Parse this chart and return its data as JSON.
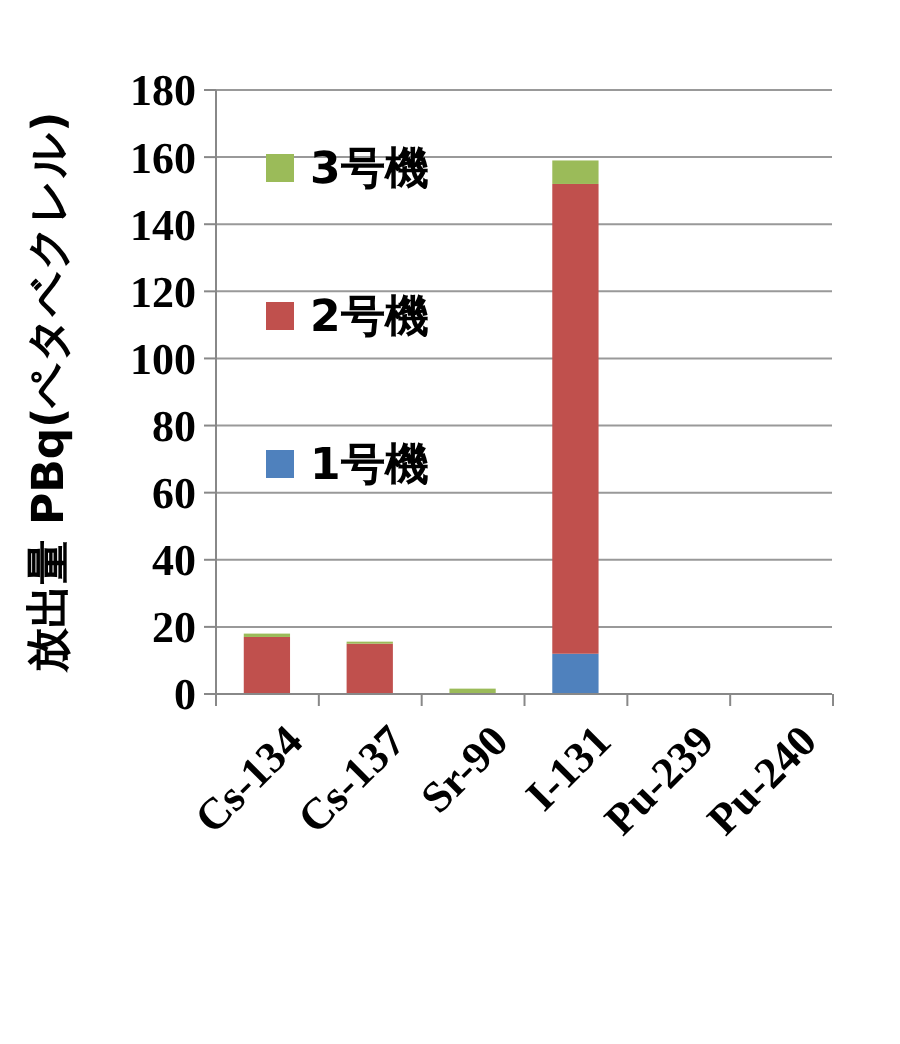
{
  "chart_data": {
    "type": "bar",
    "stacked": true,
    "ylabel": "放出量 PBq(ペタベクレル)",
    "categories": [
      "Cs-134",
      "Cs-137",
      "Sr-90",
      "I-131",
      "Pu-239",
      "Pu-240"
    ],
    "series": [
      {
        "name": "1号機",
        "color": "#4f81bd",
        "values": [
          null,
          null,
          null,
          12,
          0,
          0
        ]
      },
      {
        "name": "2号機",
        "color": "#c0504d",
        "values": [
          17,
          15,
          null,
          140,
          0,
          0
        ]
      },
      {
        "name": "3号機",
        "color": "#9bbb59",
        "values": [
          1,
          0.6,
          1.6,
          7,
          0,
          0
        ]
      }
    ],
    "ylim": [
      0,
      180
    ],
    "yticks": [
      0,
      20,
      40,
      60,
      80,
      100,
      120,
      140,
      160,
      180
    ],
    "grid": "y",
    "legend": "top left"
  }
}
